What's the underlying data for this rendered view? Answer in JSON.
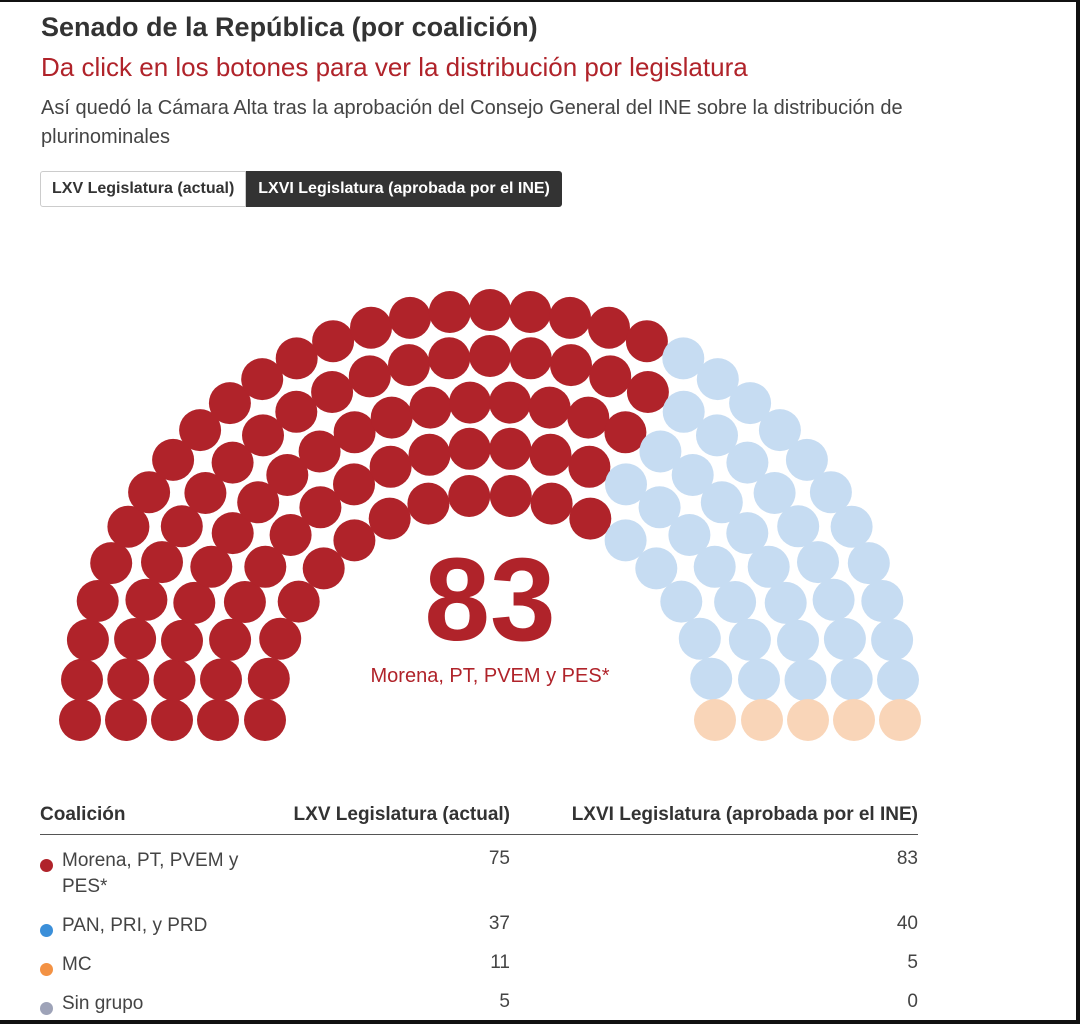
{
  "header": {
    "title": "Senado de la República (por coalición)",
    "subtitle": "Da click en los botones para ver la distribución por legislatura",
    "description": "Así quedó la Cámara Alta tras la aprobación del Consejo General del INE sobre la distribución de plurinominales"
  },
  "buttons": {
    "lxv_label": "LXV Legislatura (actual)",
    "lxvi_label": "LXVI Legislatura (aprobada por el INE)",
    "active": "lxvi"
  },
  "center": {
    "value": "83",
    "label": "Morena, PT, PVEM y PES*"
  },
  "table": {
    "headers": [
      "Coalición",
      "LXV Legislatura (actual)",
      "LXVI Legislatura (aprobada por el INE)"
    ],
    "rows": [
      {
        "name": "Morena, PT, PVEM y PES*",
        "lxv": "75",
        "lxvi": "83"
      },
      {
        "name": "PAN, PRI, y PRD",
        "lxv": "37",
        "lxvi": "40"
      },
      {
        "name": "MC",
        "lxv": "11",
        "lxvi": "5"
      },
      {
        "name": "Sin grupo",
        "lxv": "5",
        "lxvi": "0"
      }
    ]
  },
  "chart_data": {
    "type": "parliament",
    "legislature_shown": "LXVI Legislatura (aprobada por el INE)",
    "total_seats": 128,
    "series": [
      {
        "name": "Morena, PT, PVEM y PES*",
        "seats": 83,
        "color": "#b0232a"
      },
      {
        "name": "PAN, PRI, y PRD",
        "seats": 40,
        "color": "#c6dcf2"
      },
      {
        "name": "MC",
        "seats": 5,
        "color": "#f9d5b8"
      },
      {
        "name": "Sin grupo",
        "seats": 0,
        "color": "#9ea3b8"
      }
    ]
  },
  "colors": {
    "morena": "#b0232a",
    "pan": "#c6dcf2",
    "mc": "#f9d5b8",
    "sin_grupo": "#9ea3b8",
    "legend_morena": "#b0232a",
    "legend_pan": "#3b8fd9",
    "legend_mc": "#f39244",
    "legend_sin_grupo": "#9ea3b8"
  }
}
